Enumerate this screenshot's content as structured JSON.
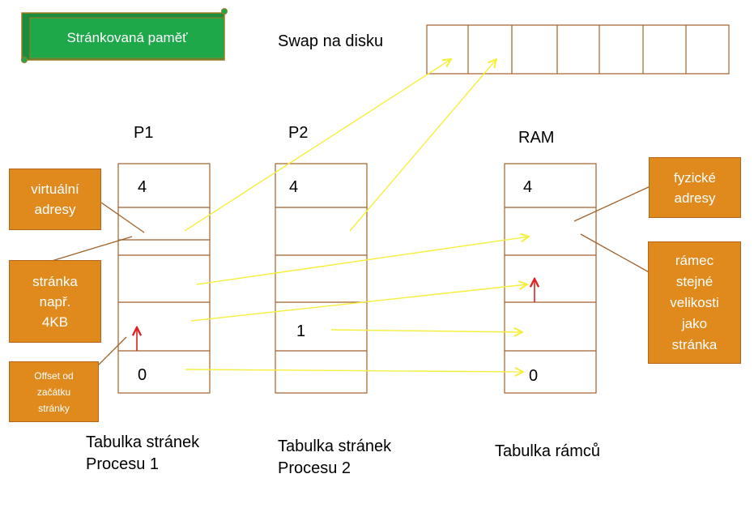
{
  "banner": {
    "label": "Stránkovaná paměť"
  },
  "swap": {
    "label": "Swap na disku",
    "slots": 8
  },
  "tables": {
    "p1": {
      "header": "P1",
      "caption": "Tabulka stránek\nProcesu 1",
      "top_value": "4",
      "mid_value": "",
      "bottom_value": "0"
    },
    "p2": {
      "header": "P2",
      "caption": "Tabulka stránek\nProcesu 2",
      "top_value": "4",
      "mid_value": "1",
      "bottom_value": ""
    },
    "ram": {
      "header": "RAM",
      "caption": "Tabulka rámců",
      "top_value": "4",
      "mid_value": "",
      "bottom_value": "0"
    }
  },
  "callouts": {
    "virtual": "virtuální\nadresy",
    "page": "stránka\nnapř.\n4KB",
    "offset": "Offset od\nzačátku\nstránky",
    "physical": "fyzické\nadresy",
    "frame": "rámec\nstejné\nvelikosti\njako\nstránka"
  },
  "colors": {
    "callout_fill": "#e08a1e",
    "banner_fill": "#1fa84a",
    "table_line": "#a0622a",
    "arrow": "#f5ef3c",
    "offset_arrow": "#e02020"
  }
}
